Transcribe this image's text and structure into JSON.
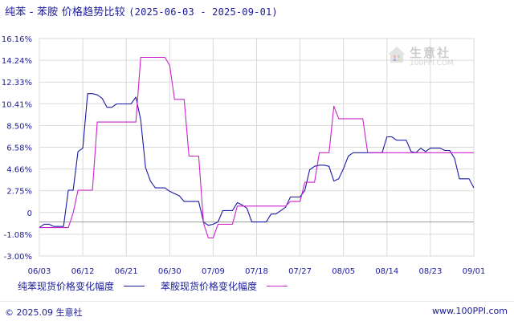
{
  "title": {
    "main": "纯苯 - 苯胺 价格趋势比较",
    "dates": "(2025-06-03 - 2025-09-01)"
  },
  "legend": [
    {
      "label": "纯苯现货价格变化幅度",
      "color": "#1a1aa6"
    },
    {
      "label": "苯胺现货价格变化幅度",
      "color": "#cc22cc"
    }
  ],
  "footer": {
    "left": "© 2025.09 生意社",
    "right": "www.100PPI.com"
  },
  "watermark": {
    "text": "生意社",
    "sub": "100PPI.COM"
  },
  "chart_data": {
    "type": "line",
    "title": "纯苯 - 苯胺 价格趋势比较",
    "ylim": [
      -3.0,
      16.16
    ],
    "y_ticks": [
      "16.16%",
      "14.24%",
      "12.33%",
      "10.41%",
      "8.50%",
      "6.58%",
      "4.66%",
      "2.75%",
      "0",
      "-1.08%",
      "-3.00%"
    ],
    "x_ticks": [
      "06/03",
      "06/12",
      "06/21",
      "06/30",
      "07/09",
      "07/18",
      "07/27",
      "08/05",
      "08/14",
      "08/23",
      "09/01"
    ],
    "grid": true,
    "x_range_days": [
      0,
      90
    ],
    "series": [
      {
        "name": "纯苯现货价格变化幅度",
        "color": "#1a1aa6",
        "points": [
          [
            0,
            -0.5
          ],
          [
            1,
            -0.2
          ],
          [
            2,
            -0.2
          ],
          [
            3,
            -0.4
          ],
          [
            4,
            -0.4
          ],
          [
            5,
            -0.4
          ],
          [
            6,
            2.8
          ],
          [
            7,
            2.8
          ],
          [
            8,
            6.2
          ],
          [
            9,
            6.5
          ],
          [
            10,
            11.3
          ],
          [
            11,
            11.3
          ],
          [
            12,
            11.2
          ],
          [
            13,
            10.9
          ],
          [
            14,
            10.1
          ],
          [
            15,
            10.1
          ],
          [
            16,
            10.4
          ],
          [
            17,
            10.4
          ],
          [
            18,
            10.4
          ],
          [
            19,
            10.4
          ],
          [
            20,
            11.0
          ],
          [
            21,
            9.0
          ],
          [
            22,
            4.8
          ],
          [
            23,
            3.6
          ],
          [
            24,
            3.0
          ],
          [
            25,
            3.0
          ],
          [
            26,
            3.0
          ],
          [
            27,
            2.7
          ],
          [
            28,
            2.5
          ],
          [
            29,
            2.3
          ],
          [
            30,
            1.8
          ],
          [
            31,
            1.8
          ],
          [
            32,
            1.8
          ],
          [
            33,
            1.8
          ],
          [
            34,
            0.0
          ],
          [
            35,
            -0.3
          ],
          [
            36,
            -0.2
          ],
          [
            37,
            0.0
          ],
          [
            38,
            1.0
          ],
          [
            39,
            1.0
          ],
          [
            40,
            1.0
          ],
          [
            41,
            1.7
          ],
          [
            42,
            1.5
          ],
          [
            43,
            1.2
          ],
          [
            44,
            0.0
          ],
          [
            45,
            0.0
          ],
          [
            46,
            0.0
          ],
          [
            47,
            0.0
          ],
          [
            48,
            0.7
          ],
          [
            49,
            0.7
          ],
          [
            50,
            1.0
          ],
          [
            51,
            1.3
          ],
          [
            52,
            2.2
          ],
          [
            53,
            2.2
          ],
          [
            54,
            2.2
          ],
          [
            55,
            2.8
          ],
          [
            56,
            4.6
          ],
          [
            57,
            4.9
          ],
          [
            58,
            5.0
          ],
          [
            59,
            5.0
          ],
          [
            60,
            4.9
          ],
          [
            61,
            3.6
          ],
          [
            62,
            3.8
          ],
          [
            63,
            4.7
          ],
          [
            64,
            5.8
          ],
          [
            65,
            6.1
          ],
          [
            66,
            6.1
          ],
          [
            67,
            6.1
          ],
          [
            68,
            6.1
          ],
          [
            69,
            6.1
          ],
          [
            70,
            6.1
          ],
          [
            71,
            6.1
          ],
          [
            72,
            7.5
          ],
          [
            73,
            7.5
          ],
          [
            74,
            7.2
          ],
          [
            75,
            7.2
          ],
          [
            76,
            7.2
          ],
          [
            77,
            6.2
          ],
          [
            78,
            6.1
          ],
          [
            79,
            6.5
          ],
          [
            80,
            6.2
          ],
          [
            81,
            6.5
          ],
          [
            82,
            6.5
          ],
          [
            83,
            6.5
          ],
          [
            84,
            6.3
          ],
          [
            85,
            6.3
          ],
          [
            86,
            5.6
          ],
          [
            87,
            3.8
          ],
          [
            88,
            3.8
          ],
          [
            89,
            3.8
          ],
          [
            90,
            3.0
          ]
        ]
      },
      {
        "name": "苯胺现货价格变化幅度",
        "color": "#cc22cc",
        "points": [
          [
            0,
            -0.5
          ],
          [
            1,
            -0.5
          ],
          [
            2,
            -0.5
          ],
          [
            3,
            -0.5
          ],
          [
            4,
            -0.5
          ],
          [
            5,
            -0.5
          ],
          [
            6,
            -0.5
          ],
          [
            7,
            0.8
          ],
          [
            8,
            2.8
          ],
          [
            9,
            2.8
          ],
          [
            10,
            2.8
          ],
          [
            11,
            2.8
          ],
          [
            12,
            8.8
          ],
          [
            13,
            8.8
          ],
          [
            14,
            8.8
          ],
          [
            15,
            8.8
          ],
          [
            16,
            8.8
          ],
          [
            17,
            8.8
          ],
          [
            18,
            8.8
          ],
          [
            19,
            8.8
          ],
          [
            20,
            8.8
          ],
          [
            21,
            14.5
          ],
          [
            22,
            14.5
          ],
          [
            23,
            14.5
          ],
          [
            24,
            14.5
          ],
          [
            25,
            14.5
          ],
          [
            26,
            14.5
          ],
          [
            27,
            13.8
          ],
          [
            28,
            10.8
          ],
          [
            29,
            10.8
          ],
          [
            30,
            10.8
          ],
          [
            31,
            5.8
          ],
          [
            32,
            5.8
          ],
          [
            33,
            5.8
          ],
          [
            34,
            -0.1
          ],
          [
            35,
            -1.4
          ],
          [
            36,
            -1.4
          ],
          [
            37,
            -0.2
          ],
          [
            38,
            -0.2
          ],
          [
            39,
            -0.2
          ],
          [
            40,
            -0.2
          ],
          [
            41,
            1.4
          ],
          [
            42,
            1.4
          ],
          [
            43,
            1.4
          ],
          [
            44,
            1.4
          ],
          [
            45,
            1.4
          ],
          [
            46,
            1.4
          ],
          [
            47,
            1.4
          ],
          [
            48,
            1.4
          ],
          [
            49,
            1.4
          ],
          [
            50,
            1.4
          ],
          [
            51,
            1.4
          ],
          [
            52,
            1.8
          ],
          [
            53,
            1.8
          ],
          [
            54,
            1.8
          ],
          [
            55,
            3.5
          ],
          [
            56,
            3.5
          ],
          [
            57,
            3.5
          ],
          [
            58,
            6.1
          ],
          [
            59,
            6.1
          ],
          [
            60,
            6.1
          ],
          [
            61,
            10.2
          ],
          [
            62,
            9.1
          ],
          [
            63,
            9.1
          ],
          [
            64,
            9.1
          ],
          [
            65,
            9.1
          ],
          [
            66,
            9.1
          ],
          [
            67,
            9.1
          ],
          [
            68,
            6.1
          ],
          [
            69,
            6.1
          ],
          [
            70,
            6.1
          ],
          [
            71,
            6.1
          ],
          [
            72,
            6.1
          ],
          [
            73,
            6.1
          ],
          [
            74,
            6.1
          ],
          [
            75,
            6.1
          ],
          [
            76,
            6.1
          ],
          [
            77,
            6.1
          ],
          [
            78,
            6.1
          ],
          [
            79,
            6.1
          ],
          [
            80,
            6.1
          ],
          [
            81,
            6.1
          ],
          [
            82,
            6.1
          ],
          [
            83,
            6.1
          ],
          [
            84,
            6.1
          ],
          [
            85,
            6.1
          ],
          [
            86,
            6.1
          ],
          [
            87,
            6.1
          ],
          [
            88,
            6.1
          ],
          [
            89,
            6.1
          ],
          [
            90,
            6.1
          ]
        ]
      }
    ]
  }
}
